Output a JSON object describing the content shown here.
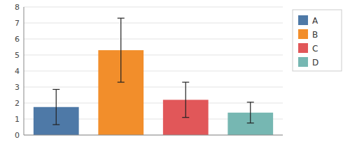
{
  "chart_data": {
    "type": "bar",
    "categories": [
      "A",
      "B",
      "C",
      "D"
    ],
    "values": [
      1.75,
      5.3,
      2.2,
      1.4
    ],
    "errors_upper": [
      1.1,
      2.0,
      1.1,
      0.65
    ],
    "errors_lower": [
      1.1,
      2.0,
      1.1,
      0.65
    ],
    "colors": [
      "#4e79a7",
      "#f28e2b",
      "#e15759",
      "#76b7b2"
    ],
    "ylim": [
      0,
      8
    ],
    "yticks": [
      0,
      1,
      2,
      3,
      4,
      5,
      6,
      7,
      8
    ],
    "grid": true,
    "legend": "right",
    "tick_labels": "y"
  }
}
